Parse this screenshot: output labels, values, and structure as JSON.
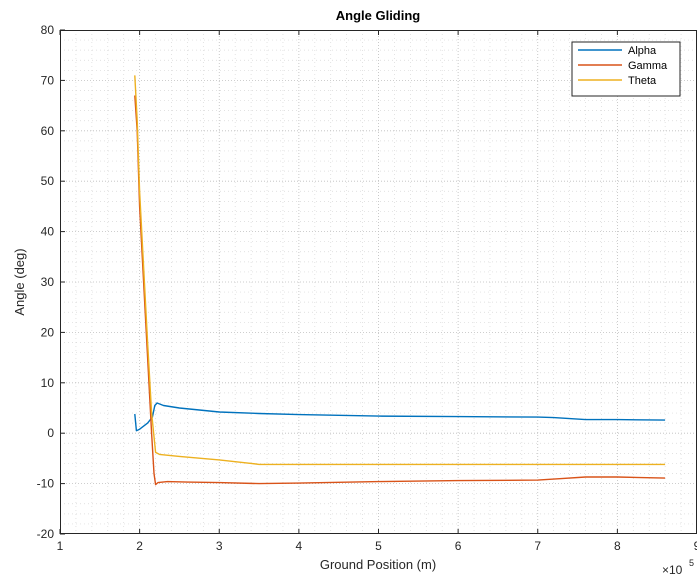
{
  "chart_data": {
    "type": "line",
    "title": "Angle Gliding",
    "xlabel": "Ground Position (m)",
    "ylabel": "Angle (deg)",
    "x_exponent_label": "×10",
    "x_exponent_power": "5",
    "xlim": [
      1,
      9
    ],
    "ylim": [
      -20,
      80
    ],
    "xticks": [
      1,
      2,
      3,
      4,
      5,
      6,
      7,
      8,
      9
    ],
    "yticks": [
      -20,
      -10,
      0,
      10,
      20,
      30,
      40,
      50,
      60,
      70,
      80
    ],
    "grid": true,
    "minor_grid": true,
    "legend_position": "top-right",
    "series": [
      {
        "name": "Alpha",
        "color": "#0072BD",
        "x": [
          1.94,
          1.96,
          2.0,
          2.1,
          2.16,
          2.19,
          2.22,
          2.3,
          2.5,
          3.0,
          3.5,
          4.0,
          5.0,
          6.0,
          7.0,
          7.2,
          7.6,
          8.0,
          8.6
        ],
        "y": [
          3.8,
          0.5,
          0.8,
          2.0,
          3.2,
          5.5,
          6.0,
          5.5,
          5.0,
          4.2,
          3.9,
          3.7,
          3.4,
          3.3,
          3.2,
          3.1,
          2.7,
          2.7,
          2.6
        ]
      },
      {
        "name": "Gamma",
        "color": "#D95319",
        "x": [
          1.94,
          1.97,
          2.0,
          2.05,
          2.1,
          2.15,
          2.18,
          2.2,
          2.23,
          2.35,
          2.6,
          3.0,
          3.5,
          4.0,
          5.0,
          6.0,
          7.0,
          7.3,
          7.6,
          8.0,
          8.6
        ],
        "y": [
          67.0,
          60.0,
          45.0,
          30.0,
          15.0,
          0.0,
          -8.0,
          -10.2,
          -9.8,
          -9.6,
          -9.7,
          -9.8,
          -10.0,
          -9.9,
          -9.6,
          -9.4,
          -9.3,
          -9.0,
          -8.7,
          -8.7,
          -8.9
        ]
      },
      {
        "name": "Theta",
        "color": "#EDB120",
        "x": [
          1.94,
          1.97,
          2.0,
          2.05,
          2.1,
          2.15,
          2.2,
          2.25,
          2.5,
          3.0,
          3.4,
          3.5,
          4.0,
          5.0,
          6.0,
          7.0,
          8.0,
          8.6
        ],
        "y": [
          71.0,
          62.0,
          48.0,
          33.0,
          18.0,
          4.0,
          -3.8,
          -4.2,
          -4.6,
          -5.3,
          -6.0,
          -6.2,
          -6.2,
          -6.2,
          -6.2,
          -6.2,
          -6.2,
          -6.2
        ]
      }
    ]
  }
}
